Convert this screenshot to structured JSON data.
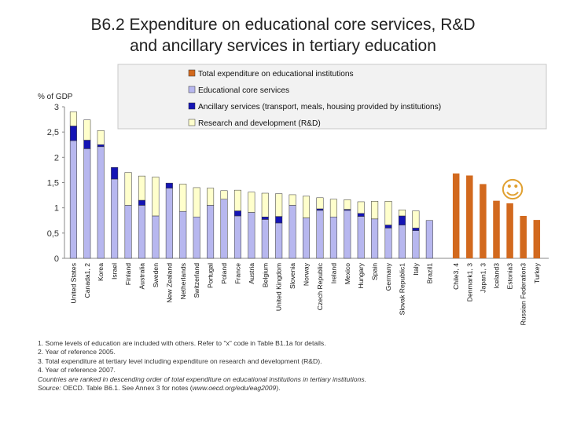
{
  "title_line1": "B6.2  Expenditure on educational core services, R&D",
  "title_line2": "and ancillary services in tertiary education",
  "chart_data": {
    "type": "bar",
    "stacked": true,
    "ylabel": "%  of GDP",
    "ylim": [
      0,
      3
    ],
    "yticks": [
      "0",
      "0,5",
      "1",
      "1,5",
      "2",
      "2,5",
      "3"
    ],
    "legend": [
      {
        "key": "total",
        "label": "Total expenditure on educational institutions",
        "color": "#d2691e"
      },
      {
        "key": "core",
        "label": "Educational  core services",
        "color": "#b7b7ef"
      },
      {
        "key": "ancillary",
        "label": "Ancillary services (transport, meals, housing provided by institutions)",
        "color": "#1414b4"
      },
      {
        "key": "rd",
        "label": "Research and development (R&D)",
        "color": "#ffffcc"
      }
    ],
    "categories": [
      "United States",
      "Canada1, 2",
      "Korea",
      "Israel",
      "Finland",
      "Australia",
      "Sweden",
      "New Zealand",
      "Netherlands",
      "Switzerland",
      "Portugal",
      "Poland",
      "France",
      "Austria",
      "Belgium",
      "United Kingdom",
      "Slovenia",
      "Norway",
      "Czech Republic",
      "Ireland",
      "Mexico",
      "Hungary",
      "Spain",
      "Germany",
      "Slovak Republic1",
      "Italy",
      "Brazil1"
    ],
    "series": [
      {
        "name": "Educational  core services",
        "values": [
          2.33,
          2.17,
          2.21,
          1.57,
          1.05,
          1.05,
          0.84,
          1.39,
          0.93,
          0.82,
          1.05,
          1.17,
          0.84,
          0.91,
          0.77,
          0.7,
          1.05,
          0.8,
          0.95,
          0.82,
          0.95,
          0.83,
          0.78,
          0.6,
          0.66,
          0.55,
          0.75
        ]
      },
      {
        "name": "Ancillary services",
        "values": [
          0.29,
          0.17,
          0.04,
          0.23,
          0.0,
          0.1,
          0.0,
          0.1,
          0.0,
          0.0,
          0.0,
          0.0,
          0.1,
          0.0,
          0.05,
          0.13,
          0.0,
          0.0,
          0.03,
          0.0,
          0.02,
          0.06,
          0.0,
          0.06,
          0.18,
          0.05,
          0.0
        ]
      },
      {
        "name": "Research and development (R&D)",
        "values": [
          0.28,
          0.4,
          0.28,
          0.0,
          0.65,
          0.48,
          0.77,
          0.0,
          0.54,
          0.58,
          0.34,
          0.17,
          0.41,
          0.4,
          0.47,
          0.45,
          0.21,
          0.43,
          0.22,
          0.35,
          0.19,
          0.23,
          0.35,
          0.47,
          0.12,
          0.34,
          0.0
        ]
      }
    ],
    "total_only": {
      "categories": [
        "Chile3, 4",
        "Denmark1, 3",
        "Japan1, 3",
        "Iceland3",
        "Estonia3",
        "Russian Federation3",
        "Turkey"
      ],
      "values": [
        1.68,
        1.64,
        1.47,
        1.14,
        1.09,
        0.84,
        0.76
      ]
    }
  },
  "notes": [
    "1. Some levels of education are included with others. Refer to \"x\" code in Table B1.1a for details.",
    "2. Year of reference 2005.",
    "3. Total expenditure at tertiary level including expenditure on research and development  (R&D).",
    "4. Year of reference 2007."
  ],
  "notes_italic": "Countries are ranked in descending order of total expenditure on educational institutions in tertiary institutions.",
  "source_label": "Source:",
  "source_text": " OECD. Table B6.1. See Annex 3 for notes (",
  "source_url": "www.oecd.org/edu/eag2009",
  "source_end": ").",
  "smiley": "☺"
}
